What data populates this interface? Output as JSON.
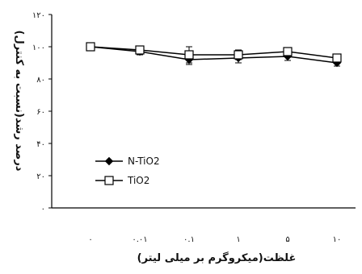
{
  "chart_data": {
    "type": "line",
    "x_ticks": [
      "۰",
      "۰.۰۱",
      "۰.۱",
      "۱",
      "۵",
      "۱۰"
    ],
    "y_ticks": [
      "۰",
      "۲۰",
      "۴۰",
      "۶۰",
      "۸۰",
      "۱۰۰",
      "۱۲۰"
    ],
    "y_tick_values": [
      0,
      20,
      40,
      60,
      80,
      100,
      120
    ],
    "ylim": [
      0,
      120
    ],
    "xlabel": "غلظت(میکروگرم بر میلی لیتر)",
    "ylabel": "درصد رشد(نسبت به کنترل)",
    "legend_position": "bottom-left",
    "grid": false,
    "series": [
      {
        "name": "N-TiO2",
        "marker": "filled-diamond",
        "color": "#000000",
        "values": [
          100,
          97,
          92,
          93,
          94,
          90
        ],
        "error": [
          1.5,
          2,
          3,
          3,
          2.5,
          2
        ]
      },
      {
        "name": "TiO2",
        "marker": "open-square",
        "color": "#000000",
        "values": [
          100,
          98,
          95,
          95,
          97,
          93
        ],
        "error": [
          1.5,
          2.5,
          5,
          3,
          2.5,
          2.5
        ]
      }
    ]
  }
}
